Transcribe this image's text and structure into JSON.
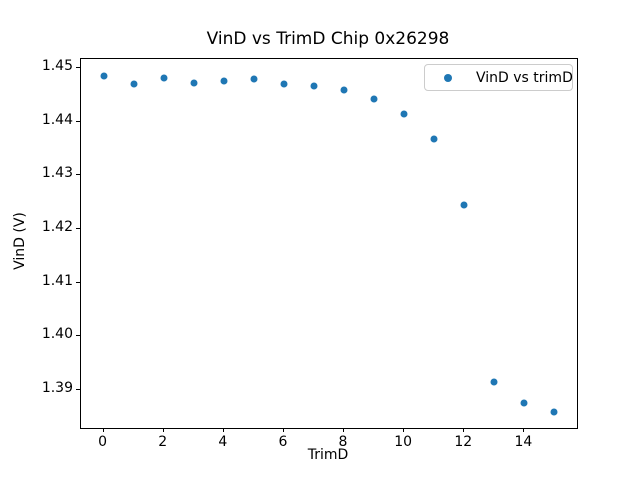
{
  "figure": {
    "background": "#ffffff"
  },
  "chart_data": {
    "type": "scatter",
    "title": "VinD vs TrimD Chip 0x26298",
    "xlabel": "TrimD",
    "ylabel": "VinD (V)",
    "grid": false,
    "xlim": [
      -0.75,
      15.75
    ],
    "ylim": [
      1.3829,
      1.4517
    ],
    "xticks": {
      "values": [
        0,
        2,
        4,
        6,
        8,
        10,
        12,
        14
      ],
      "labels": [
        "0",
        "2",
        "4",
        "6",
        "8",
        "10",
        "12",
        "14"
      ]
    },
    "yticks": {
      "values": [
        1.39,
        1.4,
        1.41,
        1.42,
        1.43,
        1.44,
        1.45
      ],
      "labels": [
        "1.39",
        "1.40",
        "1.41",
        "1.42",
        "1.43",
        "1.44",
        "1.45"
      ]
    },
    "series": [
      {
        "name": "VinD vs trimD",
        "marker": "circle",
        "color": "#1f77b4",
        "x": [
          0,
          1,
          2,
          3,
          4,
          5,
          6,
          7,
          8,
          9,
          10,
          11,
          12,
          13,
          14,
          15
        ],
        "y": [
          1.4486,
          1.447,
          1.4481,
          1.4473,
          1.4476,
          1.4479,
          1.447,
          1.4466,
          1.4459,
          1.4443,
          1.4414,
          1.4367,
          1.4245,
          1.3915,
          1.3876,
          1.3859
        ]
      }
    ],
    "legend": {
      "position": "upper right",
      "entries": [
        {
          "label": "VinD vs trimD",
          "color": "#1f77b4"
        }
      ]
    }
  }
}
